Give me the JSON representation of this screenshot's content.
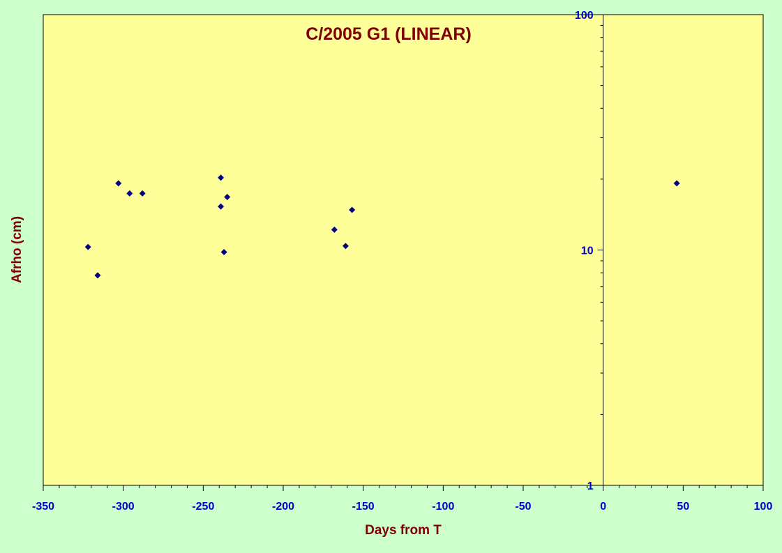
{
  "chart_data": {
    "type": "scatter",
    "title": "C/2005 G1 (LINEAR)",
    "xlabel": "Days from T",
    "ylabel": "Afrho (cm)",
    "xlim": [
      -350,
      100
    ],
    "ylim": [
      1,
      100
    ],
    "y_scale": "log",
    "x_ticks": [
      "-350",
      "-300",
      "-250",
      "-200",
      "-150",
      "-100",
      "-50",
      "0",
      "50",
      "100"
    ],
    "y_ticks": [
      "1",
      "10",
      "100"
    ],
    "grid": false,
    "legend": "none",
    "marker": "diamond",
    "colors": {
      "background": "#ccffcc",
      "plot_area": "#ffff99",
      "title": "#800000",
      "axis_label": "#800000",
      "tick_label": "#0000cc",
      "marker": "#000080",
      "axis": "#000000"
    },
    "points": [
      {
        "x": -322,
        "y": 10.3
      },
      {
        "x": -316,
        "y": 7.8
      },
      {
        "x": -303,
        "y": 19.2
      },
      {
        "x": -296,
        "y": 17.4
      },
      {
        "x": -288,
        "y": 17.4
      },
      {
        "x": -239,
        "y": 20.3
      },
      {
        "x": -239,
        "y": 15.3
      },
      {
        "x": -237,
        "y": 9.8
      },
      {
        "x": -235,
        "y": 16.8
      },
      {
        "x": -168,
        "y": 12.2
      },
      {
        "x": -161,
        "y": 10.4
      },
      {
        "x": -157,
        "y": 14.8
      },
      {
        "x": 46,
        "y": 19.2
      }
    ]
  }
}
